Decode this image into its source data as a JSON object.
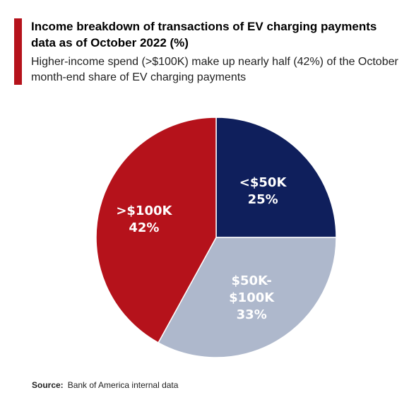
{
  "header": {
    "title": "Income breakdown of transactions of EV charging payments data as of October 2022 (%)",
    "subtitle": "Higher-income spend (>$100K) make up nearly half (42%) of the October month-end share of EV charging payments"
  },
  "footer": {
    "source_label": "Source:",
    "source_text": "Bank of America internal data"
  },
  "colors": {
    "accent": "#b5121b",
    "label_text": "#ffffff"
  },
  "chart_data": {
    "type": "pie",
    "title": "Income breakdown of transactions of EV charging payments data as of October 2022 (%)",
    "unit": "%",
    "slices": [
      {
        "label": "<$50K",
        "value": 25,
        "value_label": "25%",
        "color": "#0f1f5c"
      },
      {
        "label": "$50K-$100K",
        "value": 33,
        "value_label": "33%",
        "color": "#aeb8cc"
      },
      {
        "label": ">$100K",
        "value": 42,
        "value_label": "42%",
        "color": "#b5121b"
      }
    ]
  }
}
